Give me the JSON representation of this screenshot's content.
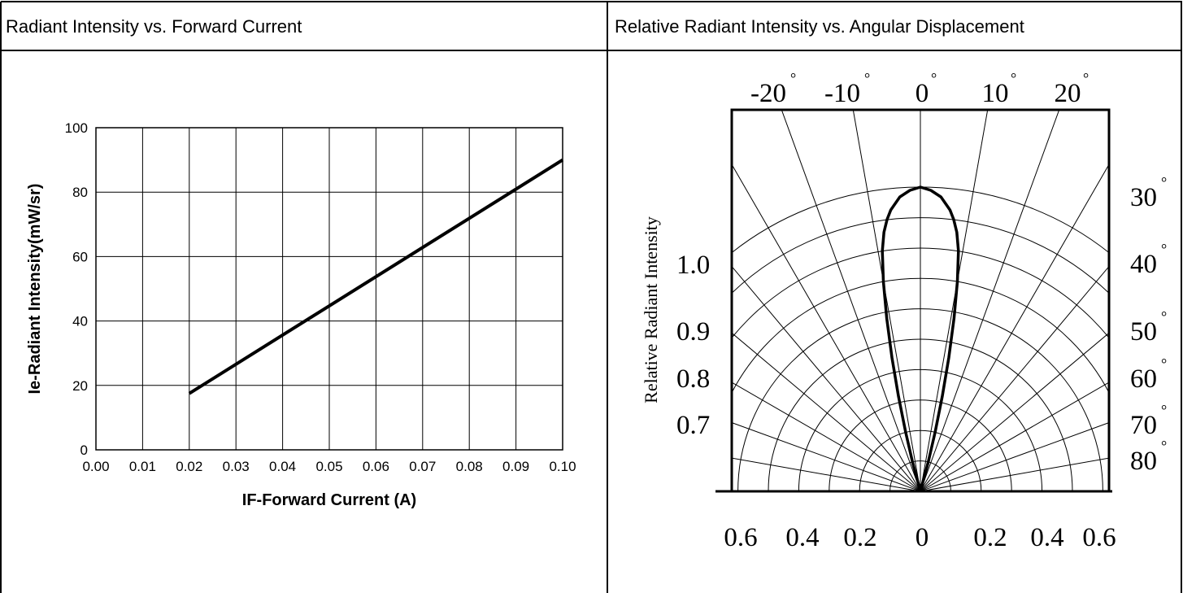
{
  "panels": {
    "left_title": "Radiant Intensity vs. Forward Current",
    "right_title": "Relative Radiant Intensity vs. Angular Displacement"
  },
  "chart_data": [
    {
      "type": "line",
      "title": "Radiant Intensity vs. Forward Current",
      "xlabel": "IF-Forward Current (A)",
      "ylabel": "Ie-Radiant Intensity(mW/sr)",
      "xlim": [
        0.0,
        0.1
      ],
      "ylim": [
        0,
        100
      ],
      "x_ticks": [
        "0.00",
        "0.01",
        "0.02",
        "0.03",
        "0.04",
        "0.05",
        "0.06",
        "0.07",
        "0.08",
        "0.09",
        "0.10"
      ],
      "y_ticks": [
        "0",
        "20",
        "40",
        "60",
        "80",
        "100"
      ],
      "grid": true,
      "series": [
        {
          "x": [
            0.02,
            0.1
          ],
          "y": [
            17.5,
            90
          ]
        }
      ]
    },
    {
      "type": "polar",
      "title": "Relative Radiant Intensity vs. Angular Displacement",
      "ylabel": "Relative Radiant Intensity",
      "top_angle_labels": [
        "-20",
        "-10",
        "0",
        "10",
        "20"
      ],
      "right_angle_labels": [
        "30",
        "40",
        "50",
        "60",
        "70",
        "80"
      ],
      "radial_labels": [
        "1.0",
        "0.9",
        "0.8",
        "0.7"
      ],
      "bottom_labels": [
        "0.6",
        "0.4",
        "0.2",
        "0",
        "0.2",
        "0.4",
        "0.6"
      ],
      "degree_symbol": "°",
      "grid": true,
      "pattern": {
        "angle_deg": [
          0,
          2,
          4,
          6,
          7,
          8,
          9,
          10,
          11,
          12,
          13,
          14,
          15,
          16
        ],
        "relative_intensity": [
          1.0,
          0.99,
          0.97,
          0.93,
          0.9,
          0.86,
          0.8,
          0.7,
          0.58,
          0.45,
          0.32,
          0.2,
          0.1,
          0.0
        ]
      }
    }
  ]
}
